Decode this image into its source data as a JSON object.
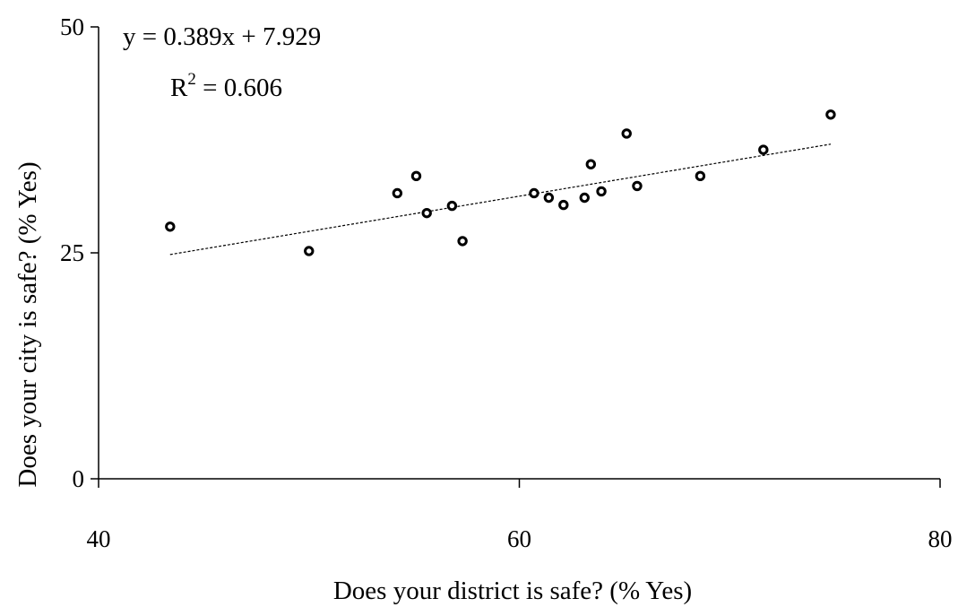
{
  "chart_data": {
    "type": "scatter",
    "title": "",
    "xlabel": "Does your district is safe? (% Yes)",
    "ylabel": "Does your city is safe? (% Yes)",
    "xlim": [
      40,
      80
    ],
    "ylim": [
      0,
      50
    ],
    "xticks": [
      "40",
      "60",
      "80"
    ],
    "yticks": [
      "0",
      "25",
      "50"
    ],
    "grid": false,
    "series": [
      {
        "points": [
          {
            "x": 43.4,
            "y": 27.9
          },
          {
            "x": 50.0,
            "y": 25.2
          },
          {
            "x": 54.2,
            "y": 31.6
          },
          {
            "x": 55.1,
            "y": 33.5
          },
          {
            "x": 55.6,
            "y": 29.4
          },
          {
            "x": 56.8,
            "y": 30.2
          },
          {
            "x": 57.3,
            "y": 26.3
          },
          {
            "x": 60.7,
            "y": 31.6
          },
          {
            "x": 61.4,
            "y": 31.1
          },
          {
            "x": 62.1,
            "y": 30.3
          },
          {
            "x": 63.1,
            "y": 31.1
          },
          {
            "x": 63.4,
            "y": 34.8
          },
          {
            "x": 63.9,
            "y": 31.8
          },
          {
            "x": 65.1,
            "y": 38.2
          },
          {
            "x": 65.6,
            "y": 32.4
          },
          {
            "x": 68.6,
            "y": 33.5
          },
          {
            "x": 71.6,
            "y": 36.4
          },
          {
            "x": 74.8,
            "y": 40.3
          }
        ]
      }
    ],
    "trendline": {
      "slope": 0.389,
      "intercept": 7.929,
      "x_range": [
        43.4,
        74.8
      ],
      "equation_label": "y = 0.389x + 7.929",
      "r2_prefix": "R",
      "r2_superscript": "2",
      "r2_value": " = 0.606"
    }
  }
}
